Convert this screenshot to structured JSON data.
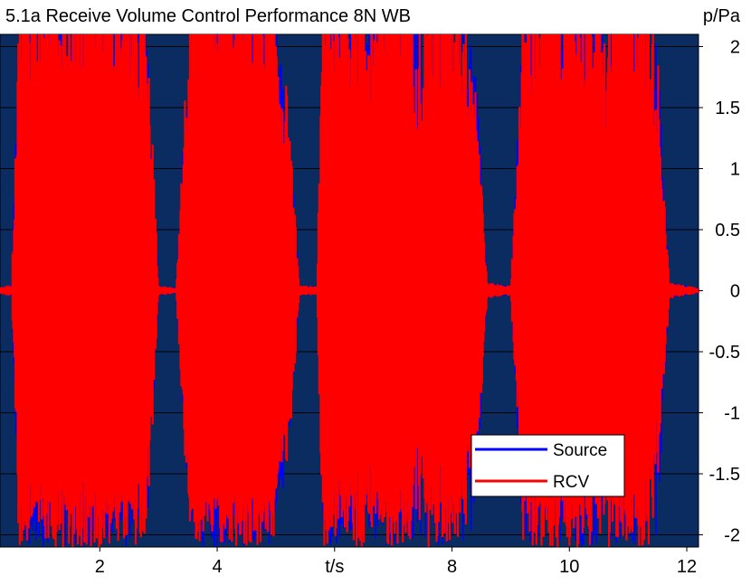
{
  "chart_data": {
    "type": "line",
    "title": "5.1a Receive Volume Control Performance 8N WB",
    "xlabel": "t/s",
    "ylabel": "p/Pa",
    "xlim": [
      0.3,
      12.2
    ],
    "ylim": [
      -2.1,
      2.1
    ],
    "x_ticks": [
      {
        "value": 2,
        "label": "2"
      },
      {
        "value": 4,
        "label": "4"
      },
      {
        "value": 6,
        "label": "t/s"
      },
      {
        "value": 8,
        "label": "8"
      },
      {
        "value": 10,
        "label": "10"
      },
      {
        "value": 12,
        "label": "12"
      }
    ],
    "y_ticks": [
      {
        "value": 2,
        "label": "2"
      },
      {
        "value": 1.5,
        "label": "1.5"
      },
      {
        "value": 1,
        "label": "1"
      },
      {
        "value": 0.5,
        "label": "0.5"
      },
      {
        "value": 0,
        "label": "0"
      },
      {
        "value": -0.5,
        "label": "-0.5"
      },
      {
        "value": -1,
        "label": "-1"
      },
      {
        "value": -1.5,
        "label": "-1.5"
      },
      {
        "value": -2,
        "label": "-2"
      }
    ],
    "grid": true,
    "legend_position": "bottom-right",
    "background_color": "#0b2c61",
    "series": [
      {
        "name": "Source",
        "color": "#0000ff",
        "envelope": [
          [
            0.3,
            0.02
          ],
          [
            0.5,
            0.04
          ],
          [
            0.6,
            1.5
          ],
          [
            0.7,
            2.1
          ],
          [
            0.9,
            2.1
          ],
          [
            1.1,
            2.1
          ],
          [
            1.3,
            2.1
          ],
          [
            1.5,
            1.9
          ],
          [
            1.7,
            2.1
          ],
          [
            2.0,
            2.1
          ],
          [
            2.3,
            2.1
          ],
          [
            2.6,
            2.1
          ],
          [
            2.8,
            1.6
          ],
          [
            2.9,
            0.9
          ],
          [
            3.0,
            0.03
          ],
          [
            3.3,
            0.02
          ],
          [
            3.45,
            1.2
          ],
          [
            3.6,
            2.1
          ],
          [
            3.9,
            2.1
          ],
          [
            4.2,
            2.1
          ],
          [
            4.5,
            2.1
          ],
          [
            4.8,
            2.1
          ],
          [
            5.0,
            1.7
          ],
          [
            5.2,
            1.2
          ],
          [
            5.4,
            0.03
          ],
          [
            5.7,
            0.03
          ],
          [
            5.8,
            1.8
          ],
          [
            6.0,
            2.1
          ],
          [
            6.3,
            2.1
          ],
          [
            6.6,
            1.8
          ],
          [
            6.9,
            2.1
          ],
          [
            7.2,
            2.1
          ],
          [
            7.5,
            1.6
          ],
          [
            7.8,
            2.1
          ],
          [
            8.1,
            2.1
          ],
          [
            8.4,
            1.4
          ],
          [
            8.6,
            0.05
          ],
          [
            9.0,
            0.03
          ],
          [
            9.2,
            1.6
          ],
          [
            9.4,
            2.1
          ],
          [
            9.7,
            2.1
          ],
          [
            10.0,
            2.1
          ],
          [
            10.3,
            2.1
          ],
          [
            10.6,
            1.6
          ],
          [
            10.9,
            2.1
          ],
          [
            11.2,
            2.1
          ],
          [
            11.5,
            1.5
          ],
          [
            11.7,
            0.05
          ],
          [
            12.2,
            0.02
          ]
        ]
      },
      {
        "name": "RCV",
        "color": "#ff0000",
        "envelope": [
          [
            0.3,
            0.02
          ],
          [
            0.5,
            0.04
          ],
          [
            0.6,
            1.5
          ],
          [
            0.7,
            2.1
          ],
          [
            0.9,
            2.1
          ],
          [
            1.1,
            2.1
          ],
          [
            1.3,
            2.1
          ],
          [
            1.5,
            1.9
          ],
          [
            1.7,
            2.1
          ],
          [
            2.0,
            2.1
          ],
          [
            2.3,
            2.1
          ],
          [
            2.6,
            2.1
          ],
          [
            2.8,
            1.6
          ],
          [
            2.9,
            0.9
          ],
          [
            3.0,
            0.03
          ],
          [
            3.3,
            0.02
          ],
          [
            3.45,
            1.2
          ],
          [
            3.6,
            2.1
          ],
          [
            3.9,
            2.1
          ],
          [
            4.2,
            2.1
          ],
          [
            4.5,
            2.1
          ],
          [
            4.8,
            2.1
          ],
          [
            5.0,
            1.7
          ],
          [
            5.2,
            1.2
          ],
          [
            5.4,
            0.03
          ],
          [
            5.7,
            0.03
          ],
          [
            5.8,
            1.8
          ],
          [
            6.0,
            2.1
          ],
          [
            6.3,
            2.1
          ],
          [
            6.6,
            1.8
          ],
          [
            6.9,
            2.1
          ],
          [
            7.2,
            2.1
          ],
          [
            7.5,
            1.6
          ],
          [
            7.8,
            2.1
          ],
          [
            8.1,
            2.1
          ],
          [
            8.4,
            1.4
          ],
          [
            8.6,
            0.05
          ],
          [
            9.0,
            0.03
          ],
          [
            9.2,
            1.6
          ],
          [
            9.4,
            2.1
          ],
          [
            9.7,
            2.1
          ],
          [
            10.0,
            2.1
          ],
          [
            10.3,
            2.1
          ],
          [
            10.6,
            1.6
          ],
          [
            10.9,
            2.1
          ],
          [
            11.2,
            2.1
          ],
          [
            11.5,
            1.5
          ],
          [
            11.7,
            0.05
          ],
          [
            12.2,
            0.02
          ]
        ]
      }
    ]
  }
}
